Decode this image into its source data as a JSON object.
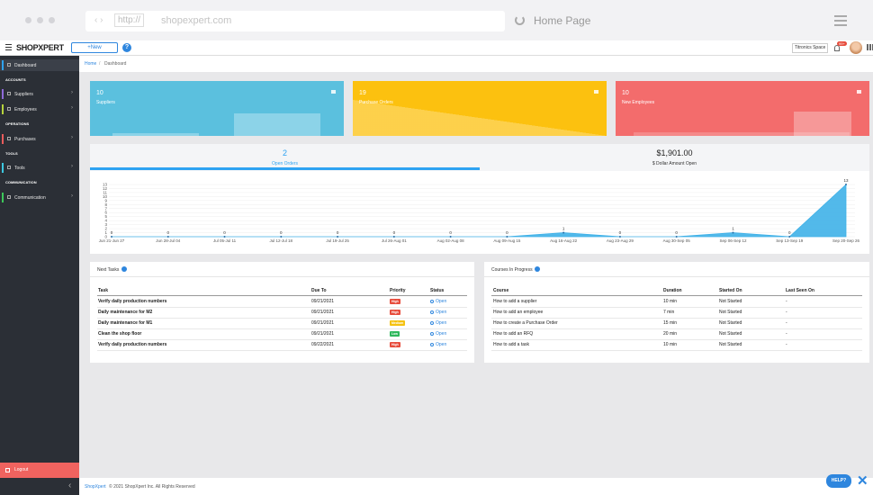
{
  "browser": {
    "url_prefix": "http://",
    "url": "shopexpert.com",
    "page_title": "Home Page"
  },
  "header": {
    "logo": "SHOPXPERT",
    "new_button": "+New",
    "help_icon": "?",
    "company": "Titronics Space",
    "notification_badge": "99+"
  },
  "nav": [
    {
      "label": "Dashboard",
      "color": "#2ea3f2"
    },
    {
      "heading": "ACCOUNTS"
    },
    {
      "label": "Suppliers",
      "color": "#8e6ad8"
    },
    {
      "label": "Employees",
      "color": "#b6d33c"
    },
    {
      "heading": "OPERATIONS"
    },
    {
      "label": "Purchases",
      "color": "#e85c5c"
    },
    {
      "heading": "TOOLS"
    },
    {
      "label": "Tools",
      "color": "#3cc8e0"
    },
    {
      "heading": "COMMUNICATION"
    },
    {
      "label": "Communication",
      "color": "#3cc85a"
    }
  ],
  "logout": "Logout",
  "breadcrumb": [
    "Home",
    "Dashboard"
  ],
  "cards": [
    {
      "value": "10",
      "label": "Suppliers",
      "color": "#5bc0de"
    },
    {
      "value": "19",
      "label": "Purchase Orders",
      "color": "#fcc10f"
    },
    {
      "value": "10",
      "label": "New Employees",
      "color": "#f36c6c"
    }
  ],
  "tabs": [
    {
      "value": "2",
      "label": "Open Orders"
    },
    {
      "value": "$1,901.00",
      "label": "$ Dollar Amount Open"
    }
  ],
  "chart": {
    "type": "area",
    "categories": [
      "Jun 21-Jun 27",
      "Jun 28-Jul 04",
      "Jul 05-Jul 11",
      "Jul 12-Jul 18",
      "Jul 19-Jul 25",
      "Jul 26-Aug 01",
      "Aug 02-Aug 08",
      "Aug 09-Aug 15",
      "Aug 16-Aug 22",
      "Aug 23-Aug 29",
      "Aug 30-Sep 05",
      "Sep 06-Sep 12",
      "Sep 13-Sep 19",
      "Sep 20-Sep 26"
    ],
    "values": [
      0,
      0,
      0,
      0,
      0,
      0,
      0,
      0,
      1,
      0,
      0,
      1,
      0,
      13
    ],
    "color": "#3fb1e8",
    "ylim": [
      0,
      13
    ],
    "yticks": [
      0,
      1,
      2,
      3,
      4,
      5,
      6,
      7,
      8,
      9,
      10,
      11,
      12,
      13
    ],
    "grid": true
  },
  "tasks": {
    "title": "Next Tasks",
    "columns": [
      "Task",
      "Due To",
      "Priority",
      "Status"
    ],
    "rows": [
      [
        "Verify daily production numbers",
        "09/21/2021",
        "High",
        "Open"
      ],
      [
        "Daily maintenance for M2",
        "09/21/2021",
        "High",
        "Open"
      ],
      [
        "Daily maintenance for M1",
        "09/21/2021",
        "Medium",
        "Open"
      ],
      [
        "Clean the shop floor",
        "09/21/2021",
        "Low",
        "Open"
      ],
      [
        "Verify daily production numbers",
        "09/22/2021",
        "High",
        "Open"
      ]
    ],
    "priority_colors": {
      "High": "#e74c3c",
      "Medium": "#f5c211",
      "Low": "#2eb85c"
    }
  },
  "courses": {
    "title": "Courses In Progress",
    "columns": [
      "Course",
      "Duration",
      "Started On",
      "Last Seen On"
    ],
    "rows": [
      [
        "How to add a supplier",
        "10 min",
        "Not Started",
        "-"
      ],
      [
        "How to add an employee",
        "7 min",
        "Not Started",
        "-"
      ],
      [
        "How to create a Purchase Order",
        "15 min",
        "Not Started",
        "-"
      ],
      [
        "How to add an RFQ",
        "20 min",
        "Not Started",
        "-"
      ],
      [
        "How to add a task",
        "10 min",
        "Not Started",
        "-"
      ]
    ]
  },
  "footer": {
    "brand": "ShopXpert",
    "text": "© 2021 ShopXpert Inc. All Rights Reserved",
    "help_button": "HELP?"
  }
}
